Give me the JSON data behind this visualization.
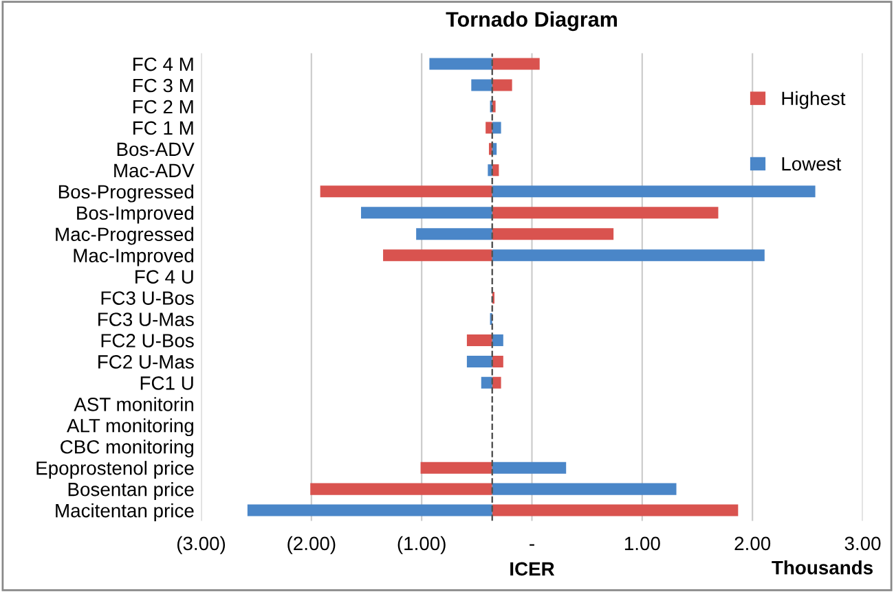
{
  "chart_data": {
    "type": "bar",
    "orientation": "horizontal",
    "title": "Tornado Diagram",
    "xlabel": "ICER",
    "annotations": [
      "Thousands"
    ],
    "categories": [
      "FC 4 M",
      "FC 3 M",
      "FC 2 M",
      "FC 1 M",
      "Bos-ADV",
      "Mac-ADV",
      "Bos-Progressed",
      "Bos-Improved",
      "Mac-Progressed",
      "Mac-Improved",
      "FC 4 U",
      "FC3 U-Bos",
      "FC3 U-Mas",
      "FC2 U-Bos",
      "FC2 U-Mas",
      "FC1 U",
      "AST monitorin",
      "ALT monitoring",
      "CBC monitoring",
      "Epoprostenol price",
      "Bosentan price",
      "Macitentan price"
    ],
    "series": [
      {
        "name": "Highest",
        "color": "#d9534f",
        "base": [
          -0.36,
          -0.36,
          -0.36,
          -0.36,
          -0.36,
          -0.36,
          -0.36,
          -0.36,
          -0.36,
          -0.36,
          null,
          -0.36,
          null,
          -0.36,
          -0.36,
          -0.36,
          null,
          null,
          null,
          -0.36,
          -0.36,
          -0.36
        ],
        "values": [
          0.43,
          0.18,
          0.03,
          -0.06,
          -0.03,
          0.06,
          -1.56,
          2.05,
          1.1,
          -0.99,
          null,
          0.02,
          null,
          -0.23,
          0.1,
          0.08,
          null,
          null,
          null,
          -0.65,
          -1.65,
          2.23
        ]
      },
      {
        "name": "Lowest",
        "color": "#4a86c8",
        "base": [
          -0.36,
          -0.36,
          -0.36,
          -0.36,
          -0.36,
          -0.36,
          -0.36,
          -0.36,
          -0.36,
          -0.36,
          null,
          null,
          -0.36,
          -0.36,
          -0.36,
          -0.36,
          null,
          null,
          null,
          -0.36,
          -0.36,
          -0.36
        ],
        "values": [
          -0.57,
          -0.19,
          -0.02,
          0.08,
          0.04,
          -0.04,
          2.93,
          -1.19,
          -0.69,
          2.47,
          null,
          null,
          -0.02,
          0.1,
          -0.23,
          -0.1,
          null,
          null,
          null,
          0.67,
          1.67,
          -2.22
        ]
      }
    ],
    "xlim": [
      -3,
      3
    ],
    "xticks": [
      {
        "value": -3,
        "label": "(3.00)"
      },
      {
        "value": -2,
        "label": "(2.00)"
      },
      {
        "value": -1,
        "label": "(1.00)"
      },
      {
        "value": 0,
        "label": "-"
      },
      {
        "value": 1,
        "label": "1.00"
      },
      {
        "value": 2,
        "label": "2.00"
      },
      {
        "value": 3,
        "label": "3.00"
      }
    ],
    "ref_lines": [
      {
        "axis": "x",
        "value": -0.36,
        "color": "#555555",
        "line_style": "dashed"
      }
    ],
    "grid": "x",
    "legend": "right"
  }
}
